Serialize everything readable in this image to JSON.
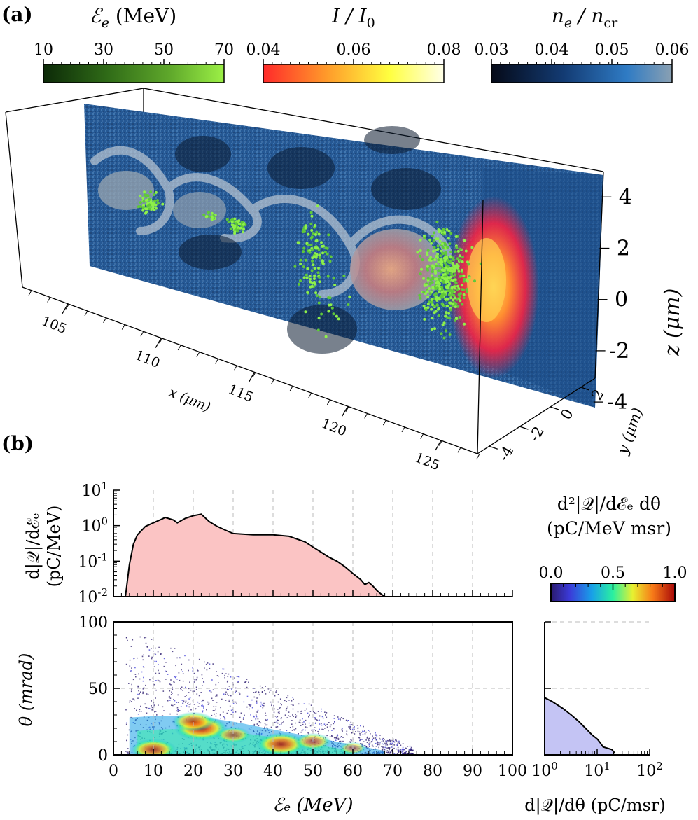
{
  "panel_a": {
    "label": "(a)",
    "colorbars": [
      {
        "title_sym": "ℰ",
        "title_sub": "e",
        "title_rest": " (MeV)",
        "ticks": [
          "10",
          "30",
          "50",
          "70"
        ],
        "stops": [
          "#0c2a08",
          "#2f6a17",
          "#5fa82b",
          "#9cf046"
        ]
      },
      {
        "title_sym": "I / I",
        "title_sub": "0",
        "title_rest": "",
        "ticks": [
          "0.04",
          "0.06",
          "0.08"
        ],
        "stops": [
          "#ff2a2a",
          "#ff9a2a",
          "#ffff40",
          "#ffffe8"
        ]
      },
      {
        "title_sym": "n",
        "title_sub": "e",
        "title_rest": " / n",
        "title_sub2": "cr",
        "ticks": [
          "0.03",
          "0.04",
          "0.05",
          "0.06"
        ],
        "stops": [
          "#050a18",
          "#133b73",
          "#2f7bc4",
          "#8aa0b2"
        ]
      }
    ],
    "x_axis_label": "x (μm)",
    "x_ticks": [
      "105",
      "110",
      "115",
      "120",
      "125"
    ],
    "y_axis_label": "y (μm)",
    "y_ticks": [
      "2",
      "0",
      "-2",
      "-4"
    ],
    "z_axis_label": "z (μm)",
    "z_ticks": [
      "4",
      "2",
      "0",
      "-2",
      "-4"
    ]
  },
  "panel_b": {
    "label": "(b)",
    "spectrum_ylabel_line1": "d|𝒬|/dℰₑ",
    "spectrum_ylabel_line2": "(pC/MeV)",
    "spectrum_yticks": [
      {
        "base": "10",
        "exp": "1"
      },
      {
        "base": "10",
        "exp": "0"
      },
      {
        "base": "10",
        "exp": "-1"
      },
      {
        "base": "10",
        "exp": "-2"
      }
    ],
    "theta_ylabel": "θ (mrad)",
    "theta_yticks": [
      "100",
      "50",
      "0"
    ],
    "energy_xticks": [
      "0",
      "10",
      "20",
      "30",
      "40",
      "50",
      "60",
      "70",
      "80",
      "90",
      "100"
    ],
    "energy_xlabel": "ℰₑ (MeV)",
    "ang_xticks": [
      {
        "base": "10",
        "exp": "0"
      },
      {
        "base": "10",
        "exp": "1"
      },
      {
        "base": "10",
        "exp": "2"
      }
    ],
    "ang_xlabel": "d|𝒬|/dθ (pC/msr)",
    "cbar_title_line1": "d²|𝒬|/dℰₑ dθ",
    "cbar_title_line2": "(pC/MeV msr)",
    "cbar_ticks": [
      "0.0",
      "0.5",
      "1.0"
    ]
  },
  "chart_data": [
    {
      "type": "area",
      "title": "",
      "xlabel": "ℰe (MeV)",
      "ylabel": "d|Q|/dℰe (pC/MeV)",
      "yscale": "log",
      "xlim": [
        0,
        100
      ],
      "ylim": [
        0.01,
        10
      ],
      "x": [
        3,
        4,
        5,
        6,
        8,
        10,
        12,
        13,
        15,
        16,
        18,
        20,
        22,
        24,
        26,
        28,
        30,
        35,
        40,
        44,
        46,
        48,
        50,
        52,
        54,
        56,
        58,
        60,
        62,
        63,
        64,
        65,
        66,
        67,
        68
      ],
      "values": [
        0.01,
        0.08,
        0.3,
        0.55,
        0.95,
        1.2,
        1.5,
        1.7,
        1.45,
        1.2,
        1.6,
        1.9,
        2.1,
        1.3,
        0.95,
        0.75,
        0.6,
        0.55,
        0.55,
        0.5,
        0.42,
        0.35,
        0.25,
        0.18,
        0.13,
        0.1,
        0.07,
        0.045,
        0.03,
        0.022,
        0.025,
        0.02,
        0.015,
        0.012,
        0.01
      ]
    },
    {
      "type": "heatmap",
      "title": "",
      "xlabel": "ℰe (MeV)",
      "ylabel": "θ (mrad)",
      "xlim": [
        0,
        100
      ],
      "ylim": [
        0,
        100
      ],
      "colorbar": {
        "label": "d²|Q|/dℰe dθ (pC/MeV msr)",
        "range": [
          0.0,
          1.0
        ]
      },
      "hotspots": [
        {
          "energy": 22,
          "theta": 20,
          "intensity": 1.0
        },
        {
          "energy": 42,
          "theta": 8,
          "intensity": 0.9
        },
        {
          "energy": 20,
          "theta": 25,
          "intensity": 0.7
        },
        {
          "energy": 10,
          "theta": 4,
          "intensity": 0.8
        },
        {
          "energy": 30,
          "theta": 15,
          "intensity": 0.5
        },
        {
          "energy": 50,
          "theta": 10,
          "intensity": 0.55
        },
        {
          "energy": 60,
          "theta": 5,
          "intensity": 0.3
        }
      ]
    },
    {
      "type": "area",
      "title": "",
      "xlabel": "d|Q|/dθ (pC/msr)",
      "ylabel": "θ (mrad)",
      "xscale": "log",
      "xlim": [
        1,
        100
      ],
      "ylim": [
        0,
        100
      ],
      "theta": [
        0,
        2,
        4,
        6,
        8,
        10,
        12,
        15,
        20,
        25,
        30,
        35,
        40,
        43
      ],
      "values": [
        20,
        21,
        19,
        13,
        12,
        11,
        10,
        8,
        6,
        4.5,
        3.2,
        2.2,
        1.4,
        1.0
      ]
    }
  ]
}
